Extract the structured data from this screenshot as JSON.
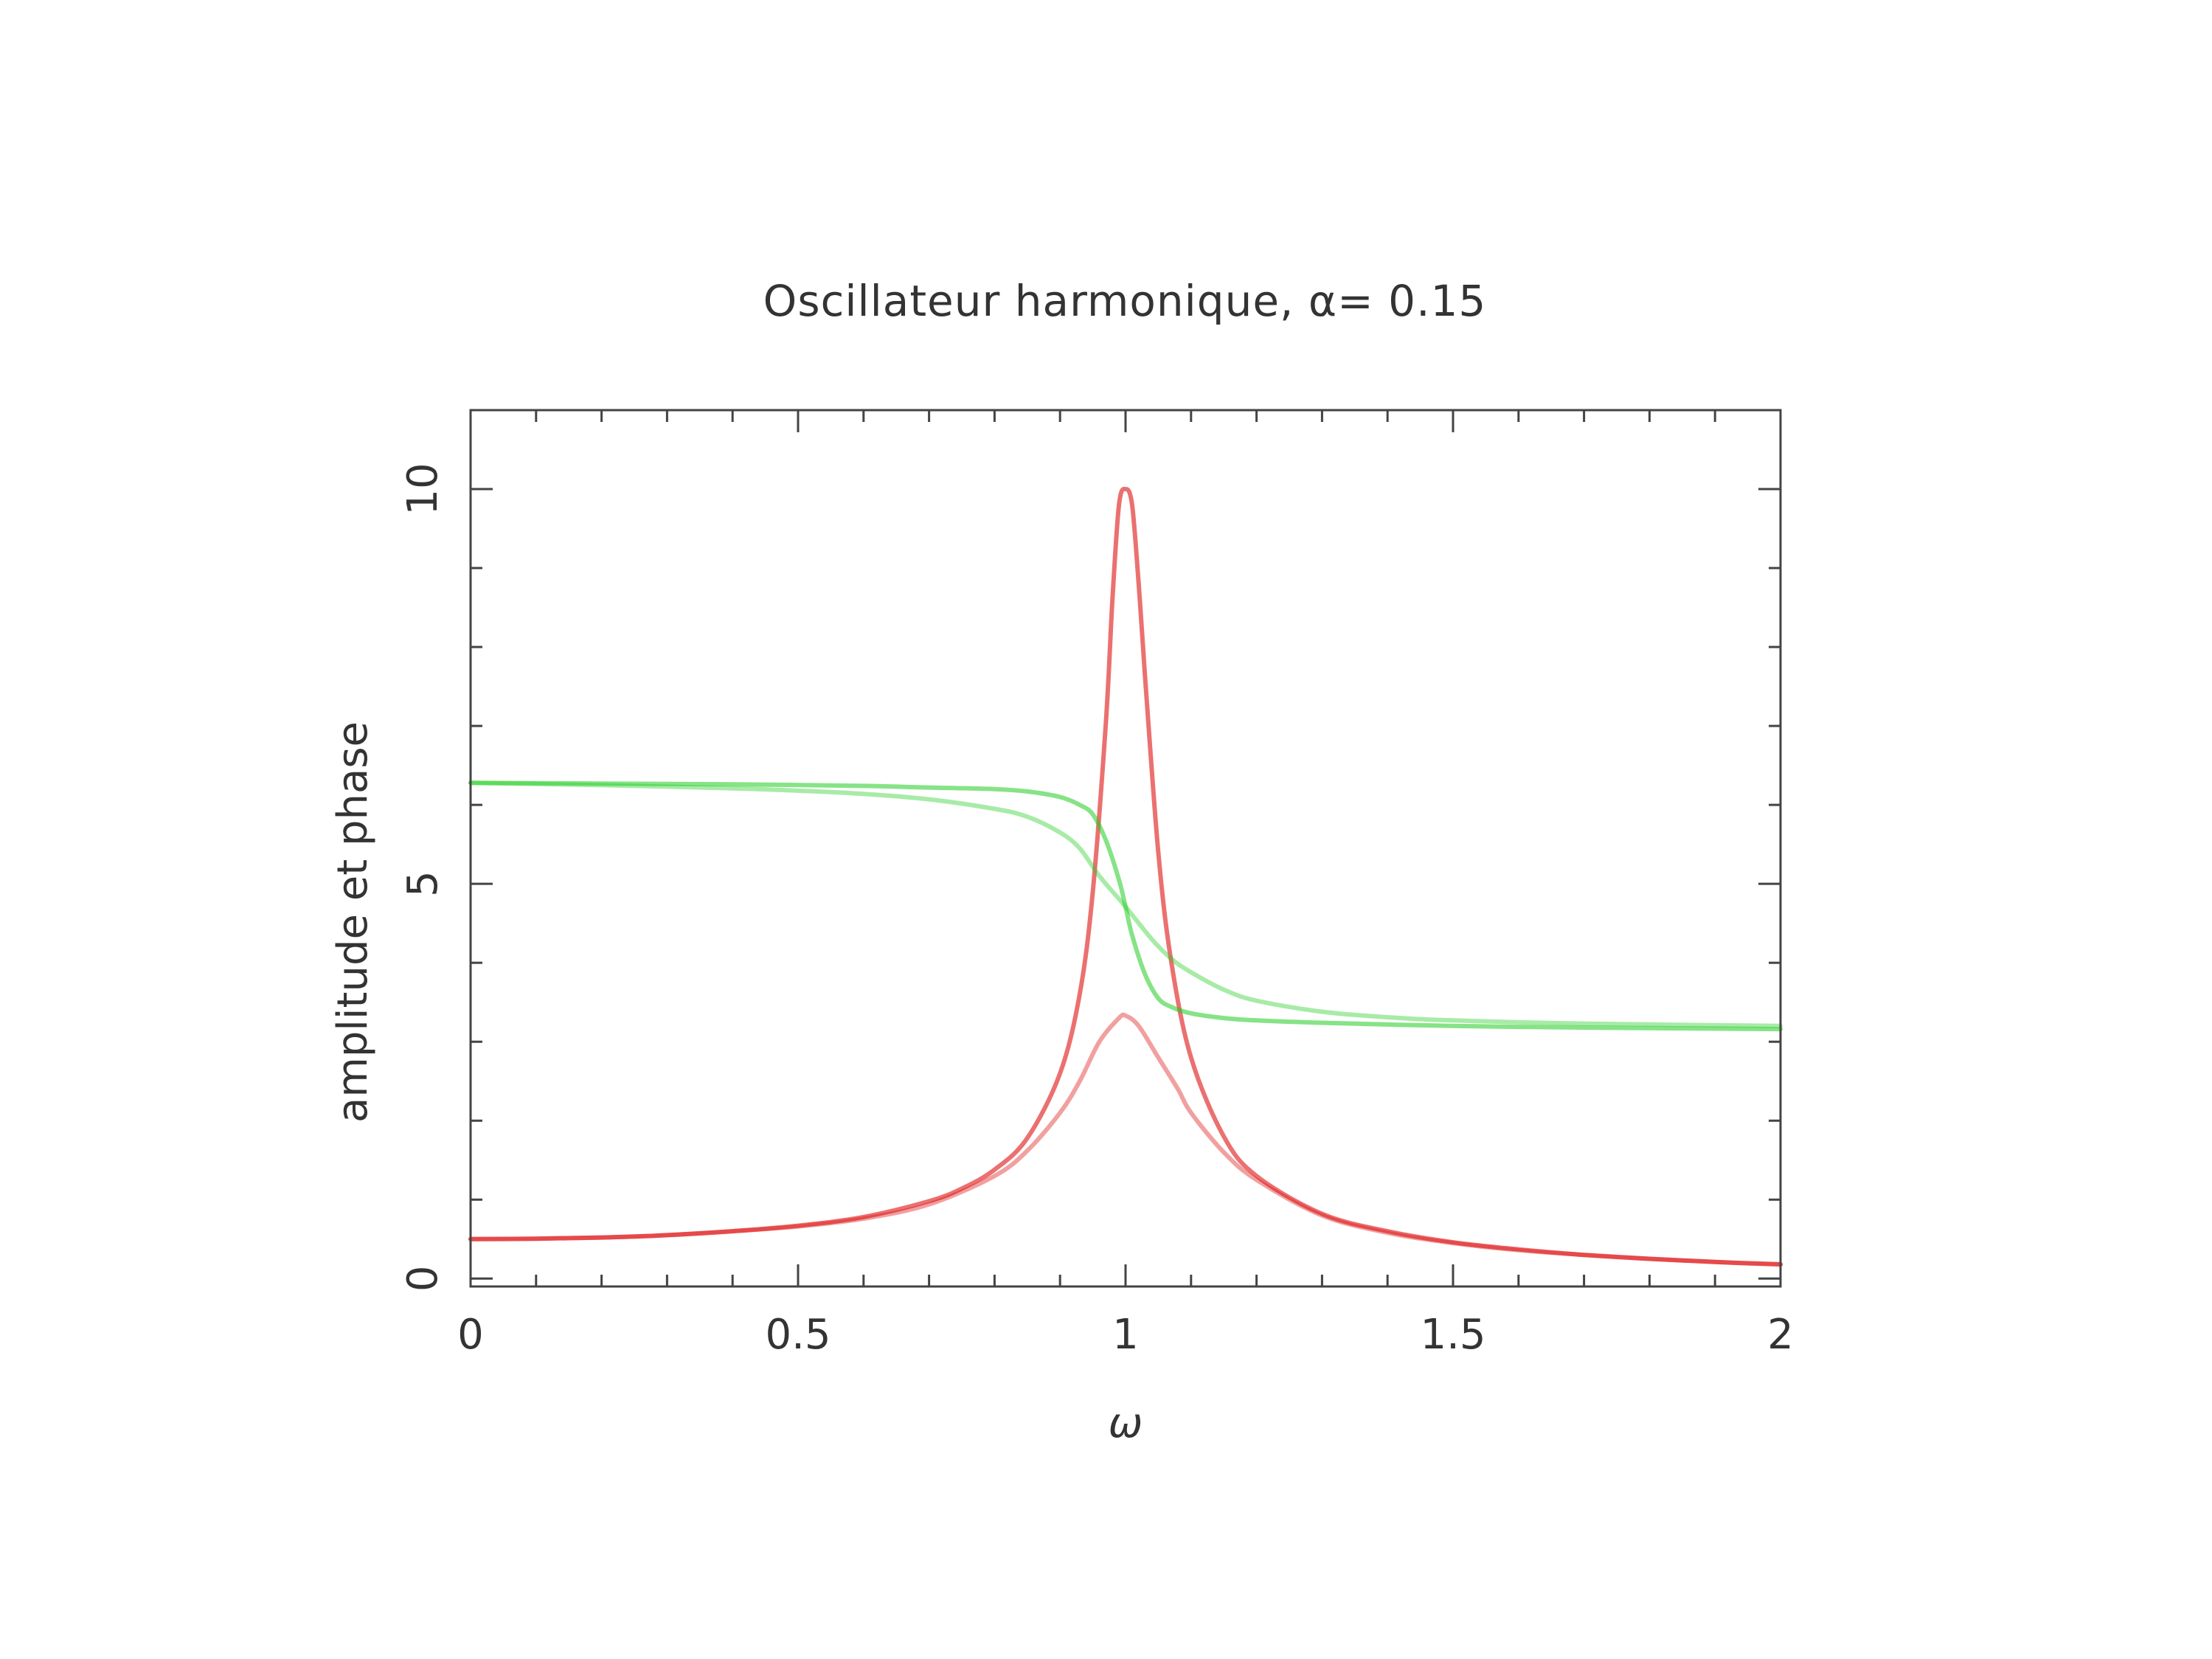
{
  "chart_data": {
    "type": "line",
    "title": "Oscillateur harmonique, α= 0.15",
    "xlabel": "ω",
    "ylabel": "amplitude et phase",
    "xlim": [
      0,
      2
    ],
    "ylim": [
      -0.1,
      11
    ],
    "x_ticks": [
      {
        "value": 0,
        "label": "0"
      },
      {
        "value": 0.5,
        "label": "0.5"
      },
      {
        "value": 1,
        "label": "1"
      },
      {
        "value": 1.5,
        "label": "1.5"
      },
      {
        "value": 2,
        "label": "2"
      }
    ],
    "y_ticks": [
      {
        "value": 0,
        "label": "0"
      },
      {
        "value": 5,
        "label": "5"
      },
      {
        "value": 10,
        "label": "10"
      }
    ],
    "grid": false,
    "legend": "none",
    "series": [
      {
        "color": "#dd1111",
        "opacity": 0.6,
        "role": "amplitude",
        "x": [
          0,
          0.1,
          0.2,
          0.3,
          0.4,
          0.5,
          0.6,
          0.7,
          0.75,
          0.8,
          0.85,
          0.9,
          0.93,
          0.95,
          0.97,
          0.98,
          0.99,
          1.0,
          1.01,
          1.02,
          1.03,
          1.05,
          1.07,
          1.1,
          1.15,
          1.2,
          1.3,
          1.4,
          1.5,
          1.6,
          1.7,
          1.8,
          1.9,
          2.0
        ],
        "values": [
          0.5,
          0.505,
          0.52,
          0.55,
          0.6,
          0.67,
          0.78,
          0.98,
          1.14,
          1.38,
          1.78,
          2.6,
          3.6,
          4.9,
          7.05,
          8.6,
          9.8,
          10.0,
          9.8,
          8.8,
          7.6,
          5.4,
          4.0,
          2.8,
          1.8,
          1.3,
          0.82,
          0.6,
          0.46,
          0.37,
          0.3,
          0.25,
          0.21,
          0.18
        ]
      },
      {
        "color": "#dd1111",
        "opacity": 0.4,
        "role": "amplitude",
        "x": [
          0,
          0.1,
          0.2,
          0.3,
          0.4,
          0.5,
          0.6,
          0.7,
          0.8,
          0.85,
          0.9,
          0.93,
          0.96,
          0.99,
          1.0,
          1.02,
          1.05,
          1.08,
          1.1,
          1.15,
          1.2,
          1.3,
          1.4,
          1.5,
          1.6,
          1.7,
          1.8,
          1.9,
          2.0
        ],
        "values": [
          0.5,
          0.505,
          0.52,
          0.55,
          0.6,
          0.66,
          0.76,
          0.94,
          1.3,
          1.62,
          2.1,
          2.5,
          3.0,
          3.3,
          3.33,
          3.2,
          2.8,
          2.4,
          2.1,
          1.6,
          1.25,
          0.8,
          0.58,
          0.45,
          0.36,
          0.3,
          0.25,
          0.21,
          0.18
        ]
      },
      {
        "color": "#22cc22",
        "opacity": 0.55,
        "role": "phase",
        "x": [
          0,
          0.2,
          0.4,
          0.6,
          0.7,
          0.8,
          0.85,
          0.9,
          0.93,
          0.95,
          0.97,
          0.99,
          1.0,
          1.01,
          1.03,
          1.05,
          1.07,
          1.1,
          1.15,
          1.2,
          1.3,
          1.5,
          1.7,
          2.0
        ],
        "values": [
          6.28,
          6.27,
          6.26,
          6.24,
          6.22,
          6.2,
          6.17,
          6.1,
          6.0,
          5.88,
          5.55,
          5.05,
          4.71,
          4.35,
          3.85,
          3.55,
          3.44,
          3.36,
          3.3,
          3.27,
          3.24,
          3.2,
          3.18,
          3.16
        ]
      },
      {
        "color": "#22cc22",
        "opacity": 0.4,
        "role": "phase",
        "x": [
          0,
          0.2,
          0.4,
          0.5,
          0.6,
          0.7,
          0.8,
          0.85,
          0.9,
          0.93,
          0.96,
          1.0,
          1.04,
          1.07,
          1.1,
          1.15,
          1.2,
          1.3,
          1.4,
          1.5,
          1.7,
          2.0
        ],
        "values": [
          6.28,
          6.25,
          6.21,
          6.18,
          6.14,
          6.07,
          5.95,
          5.85,
          5.65,
          5.45,
          5.1,
          4.71,
          4.3,
          4.05,
          3.88,
          3.66,
          3.52,
          3.38,
          3.31,
          3.27,
          3.23,
          3.2
        ]
      }
    ]
  }
}
